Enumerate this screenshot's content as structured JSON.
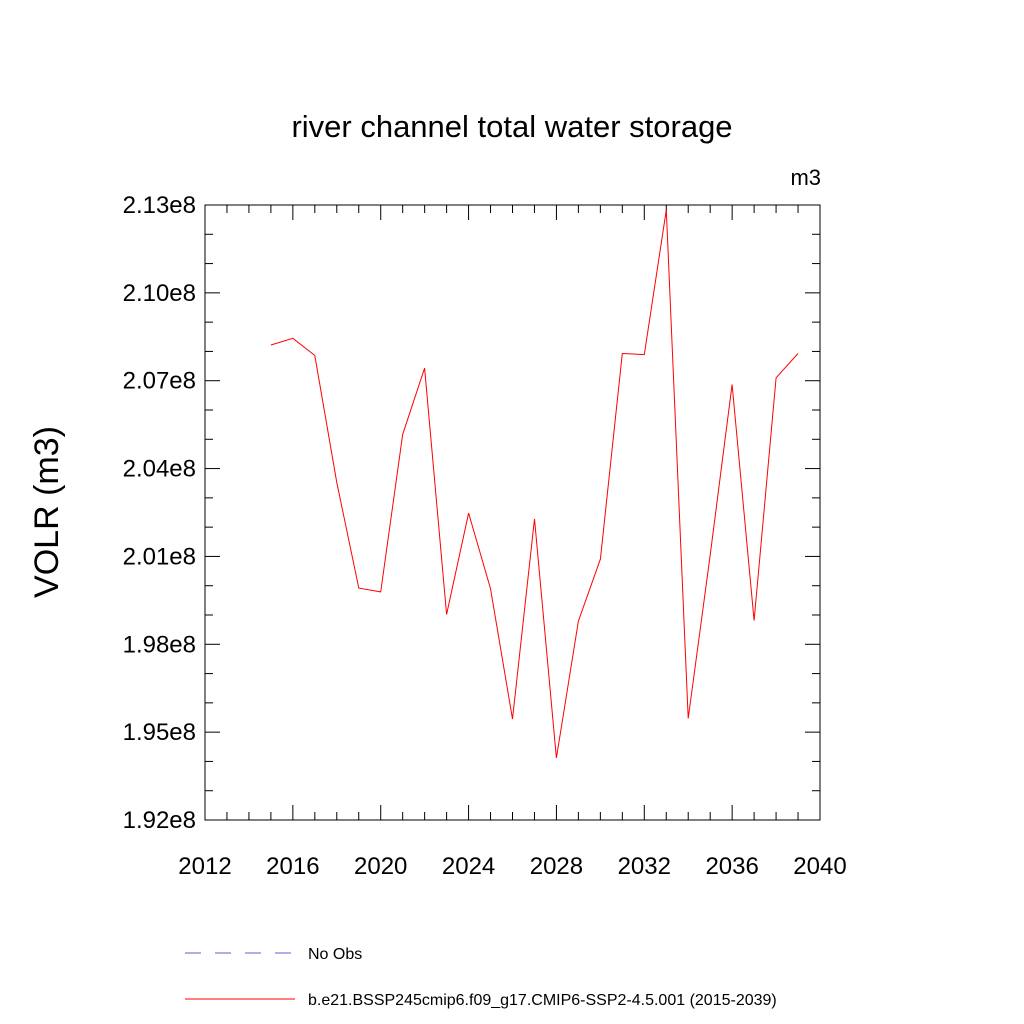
{
  "chart_data": {
    "type": "line",
    "title": "river channel total water storage",
    "units_label": "m3",
    "ylabel": "VOLR  (m3)",
    "xlabel": "",
    "xlim": [
      2012,
      2040
    ],
    "ylim": [
      192000000.0,
      213000000.0
    ],
    "x_ticks": [
      {
        "value": 2012,
        "label": "2012"
      },
      {
        "value": 2016,
        "label": "2016"
      },
      {
        "value": 2020,
        "label": "2020"
      },
      {
        "value": 2024,
        "label": "2024"
      },
      {
        "value": 2028,
        "label": "2028"
      },
      {
        "value": 2032,
        "label": "2032"
      },
      {
        "value": 2036,
        "label": "2036"
      },
      {
        "value": 2040,
        "label": "2040"
      }
    ],
    "y_ticks": [
      {
        "value": 192000000,
        "label": "1.92e8"
      },
      {
        "value": 195000000,
        "label": "1.95e8"
      },
      {
        "value": 198000000,
        "label": "1.98e8"
      },
      {
        "value": 201000000,
        "label": "2.01e8"
      },
      {
        "value": 204000000,
        "label": "2.04e8"
      },
      {
        "value": 207000000,
        "label": "2.07e8"
      },
      {
        "value": 210000000,
        "label": "2.10e8"
      },
      {
        "value": 213000000,
        "label": "2.13e8"
      }
    ],
    "x_minor_step": 1,
    "y_minor_step": 1000000,
    "grid": false,
    "series": [
      {
        "name": "b.e21.BSSP245cmip6.f09_g17.CMIP6-SSP2-4.5.001 (2015-2039)",
        "color": "#ff0000",
        "style": "solid",
        "x": [
          2015,
          2016,
          2017,
          2018,
          2019,
          2020,
          2021,
          2022,
          2023,
          2024,
          2025,
          2026,
          2027,
          2028,
          2029,
          2030,
          2031,
          2032,
          2033,
          2034,
          2035,
          2036,
          2037,
          2038,
          2039
        ],
        "values": [
          208220000,
          208450000,
          207860000,
          203520000,
          199920000,
          199790000,
          205170000,
          207430000,
          199020000,
          202480000,
          199900000,
          195450000,
          202280000,
          194120000,
          198790000,
          200910000,
          207930000,
          207890000,
          212830000,
          195470000,
          201050000,
          206870000,
          198810000,
          207100000,
          207930000
        ]
      }
    ],
    "legend": {
      "placement": "bottom",
      "entries": [
        {
          "label": "No Obs",
          "color": "#6a5acd",
          "style": "dashed"
        },
        {
          "label": "b.e21.BSSP245cmip6.f09_g17.CMIP6-SSP2-4.5.001 (2015-2039)",
          "color": "#ff0000",
          "style": "solid"
        }
      ]
    }
  }
}
